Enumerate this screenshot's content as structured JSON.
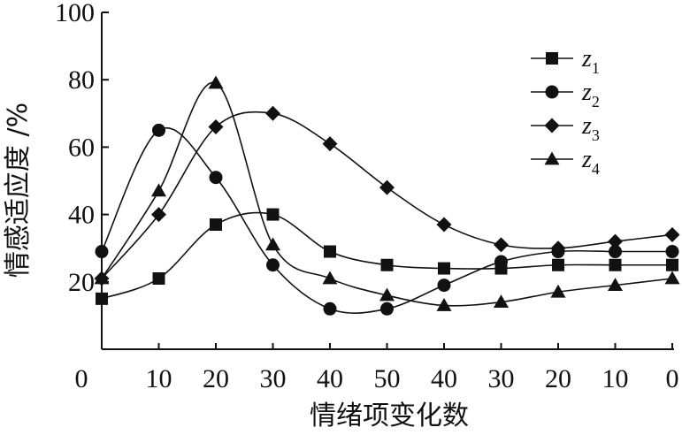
{
  "chart_data": {
    "type": "line",
    "title": "",
    "xlabel": "情绪项变化数",
    "ylabel": "情感适应度 /%",
    "x_tick_labels": [
      "0",
      "10",
      "20",
      "30",
      "40",
      "50",
      "40",
      "30",
      "20",
      "10",
      "0"
    ],
    "y_ticks": [
      20,
      40,
      60,
      80,
      100
    ],
    "ylim": [
      0,
      100
    ],
    "grid": false,
    "legend_position": "top-right",
    "series": [
      {
        "name": "z1",
        "marker": "square",
        "values": [
          15,
          21,
          37,
          40,
          29,
          25,
          24,
          24,
          25,
          25,
          25
        ]
      },
      {
        "name": "z2",
        "marker": "circle",
        "values": [
          29,
          65,
          51,
          25,
          12,
          12,
          19,
          26,
          29,
          29,
          29
        ]
      },
      {
        "name": "z3",
        "marker": "diamond",
        "values": [
          21,
          40,
          66,
          70,
          61,
          48,
          37,
          31,
          30,
          32,
          34
        ]
      },
      {
        "name": "z4",
        "marker": "triangle",
        "values": [
          21,
          47,
          79,
          31,
          21,
          16,
          13,
          14,
          17,
          19,
          21
        ]
      }
    ],
    "legend": [
      {
        "base": "z",
        "sub": "1"
      },
      {
        "base": "z",
        "sub": "2"
      },
      {
        "base": "z",
        "sub": "3"
      },
      {
        "base": "z",
        "sub": "4"
      }
    ],
    "colors": {
      "line": "#111111",
      "marker": "#111111"
    }
  }
}
